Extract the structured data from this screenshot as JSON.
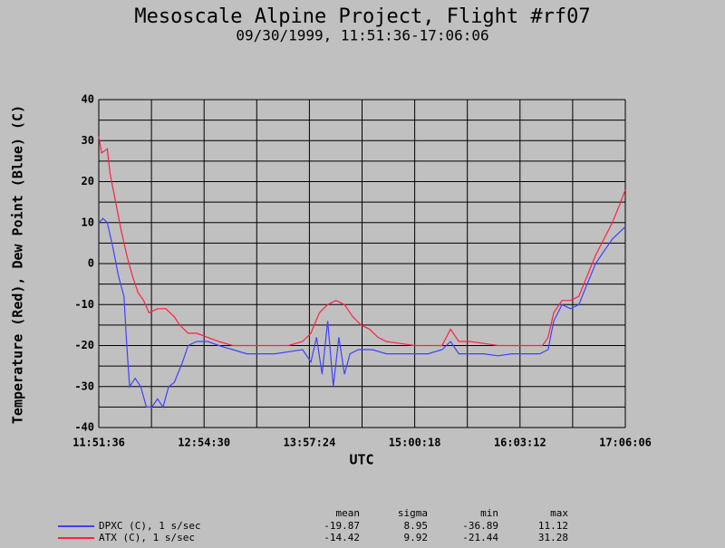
{
  "chart_data": {
    "type": "line",
    "title": "Mesoscale Alpine Project, Flight #rf07",
    "subtitle": "09/30/1999, 11:51:36-17:06:06",
    "ylabel": "Temperature (Red), Dew Point (Blue) (C)",
    "xlabel": "UTC",
    "xlim": [
      42696,
      61566
    ],
    "xticks": [
      {
        "value": 42696,
        "label": "11:51:36"
      },
      {
        "value": 46470,
        "label": "12:54:30"
      },
      {
        "value": 50244,
        "label": "13:57:24"
      },
      {
        "value": 54018,
        "label": "15:00:18"
      },
      {
        "value": 57792,
        "label": "16:03:12"
      },
      {
        "value": 61566,
        "label": "17:06:06"
      }
    ],
    "xminor": [
      44583,
      48357,
      52131,
      55905,
      59679
    ],
    "ylim": [
      -40,
      40
    ],
    "yticks": [
      -40,
      -30,
      -20,
      -10,
      0,
      10,
      20,
      30,
      40
    ],
    "yminor": [
      -35,
      -25,
      -15,
      -5,
      5,
      15,
      25,
      35
    ],
    "grid": true,
    "series": [
      {
        "name": "DPXC (C), 1 s/sec",
        "color": "#4040ff",
        "x": [
          42696,
          42850,
          43000,
          43200,
          43400,
          43600,
          43700,
          43800,
          44000,
          44200,
          44400,
          44600,
          44800,
          45000,
          45200,
          45400,
          45700,
          45900,
          46200,
          46600,
          47000,
          47500,
          48000,
          48500,
          49000,
          49500,
          50000,
          50300,
          50500,
          50700,
          50900,
          51100,
          51300,
          51500,
          51700,
          52000,
          52500,
          53000,
          53500,
          54000,
          54500,
          55000,
          55300,
          55600,
          56000,
          56500,
          57000,
          57500,
          58000,
          58500,
          58800,
          59000,
          59300,
          59600,
          59900,
          60200,
          60500,
          60800,
          61100,
          61566
        ],
        "values": [
          10,
          11,
          10,
          4,
          -3,
          -8,
          -20,
          -30,
          -28,
          -30,
          -35,
          -35,
          -33,
          -35,
          -30,
          -29,
          -24,
          -20,
          -19,
          -19,
          -20,
          -21,
          -22,
          -22,
          -22,
          -21.5,
          -21,
          -24,
          -18,
          -27,
          -14,
          -30,
          -18,
          -27,
          -22,
          -21,
          -21,
          -22,
          -22,
          -22,
          -22,
          -21,
          -19,
          -22,
          -22,
          -22,
          -22.5,
          -22,
          -22,
          -22,
          -21,
          -14,
          -10,
          -11,
          -10,
          -5,
          0,
          3,
          6,
          9
        ]
      },
      {
        "name": "ATX (C), 1 s/sec",
        "color": "#ff2040",
        "x": [
          42696,
          42800,
          43000,
          43100,
          43300,
          43500,
          43700,
          43900,
          44100,
          44300,
          44500,
          44800,
          45100,
          45400,
          45600,
          45900,
          46200,
          46600,
          47000,
          47500,
          48000,
          48500,
          49000,
          49500,
          50000,
          50300,
          50600,
          50900,
          51200,
          51500,
          51800,
          52100,
          52400,
          52700,
          53000,
          53500,
          54000,
          54500,
          55000,
          55300,
          55600,
          56000,
          56500,
          57000,
          57500,
          58000,
          58300,
          58600,
          58800,
          59000,
          59300,
          59600,
          59900,
          60200,
          60500,
          60800,
          61100,
          61400,
          61566
        ],
        "values": [
          31,
          27,
          28,
          22,
          15,
          8,
          2,
          -3,
          -7,
          -9,
          -12,
          -11,
          -11,
          -13,
          -15,
          -17,
          -17,
          -18,
          -19,
          -20,
          -20,
          -20,
          -20,
          -20,
          -19,
          -17,
          -12,
          -10,
          -9,
          -10,
          -13,
          -15,
          -16,
          -18,
          -19,
          -19.5,
          -20,
          -20,
          -20,
          -16,
          -19,
          -19,
          -19.5,
          -20,
          -20,
          -20,
          -20,
          -20,
          -18,
          -12,
          -9,
          -9,
          -8,
          -3,
          2,
          6,
          10,
          15,
          18
        ]
      }
    ],
    "stats": {
      "headers": [
        "mean",
        "sigma",
        "min",
        "max"
      ],
      "rows": [
        [
          -19.87,
          8.95,
          -36.89,
          11.12
        ],
        [
          -14.42,
          9.92,
          -21.44,
          31.28
        ]
      ]
    }
  }
}
